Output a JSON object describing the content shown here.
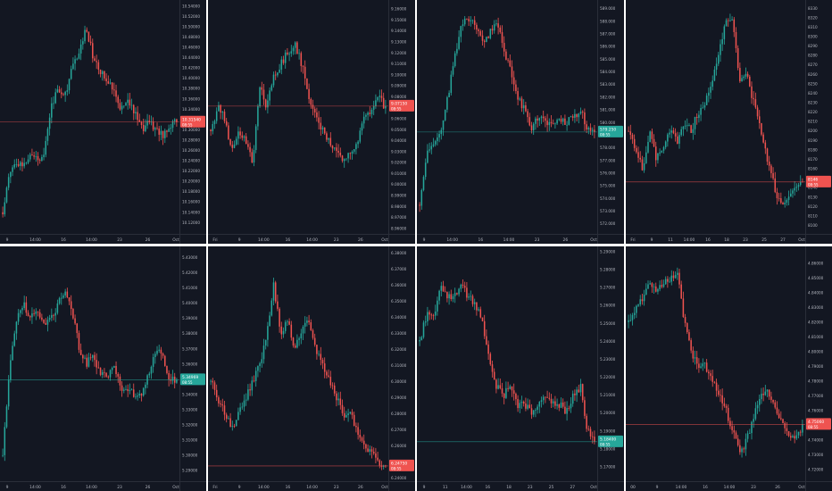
{
  "colors": {
    "background": "#131722",
    "up": "#26a69a",
    "down": "#ef5350",
    "grid_line": "#2a2e39",
    "axis_text": "#b2b5be",
    "divider": "#ffffff"
  },
  "chart_data": [
    {
      "type": "candlestick",
      "ylim": [
        10.098,
        10.545
      ],
      "y_ticks": [
        "10.54000",
        "10.52000",
        "10.50000",
        "10.48000",
        "10.46000",
        "10.44000",
        "10.42000",
        "10.40000",
        "10.38000",
        "10.36000",
        "10.34000",
        "10.32000",
        "10.30000",
        "10.28000",
        "10.26000",
        "10.24000",
        "10.22000",
        "10.20000",
        "10.18000",
        "10.16000",
        "10.14000",
        "10.12000"
      ],
      "y_tick_values": [
        10.54,
        10.52,
        10.5,
        10.48,
        10.46,
        10.44,
        10.42,
        10.4,
        10.38,
        10.36,
        10.34,
        10.32,
        10.3,
        10.28,
        10.26,
        10.24,
        10.22,
        10.2,
        10.18,
        10.16,
        10.14,
        10.12
      ],
      "x_ticks": [
        "9",
        "14:00",
        "16",
        "14:00",
        "23",
        "26",
        "Oct"
      ],
      "last_price": {
        "label": "10.31540",
        "sub": "08:55",
        "value": 10.315,
        "direction": "down"
      },
      "anchors": [
        10.14,
        10.22,
        10.24,
        10.23,
        10.26,
        10.24,
        10.26,
        10.35,
        10.38,
        10.37,
        10.42,
        10.45,
        10.5,
        10.44,
        10.41,
        10.4,
        10.38,
        10.34,
        10.36,
        10.33,
        10.3,
        10.32,
        10.3,
        10.29,
        10.31,
        10.32
      ]
    },
    {
      "type": "candlestick",
      "ylim": [
        8.955,
        9.165
      ],
      "y_ticks": [
        "9.16000",
        "9.15000",
        "9.14000",
        "9.13000",
        "9.12000",
        "9.11000",
        "9.10000",
        "9.09000",
        "9.08000",
        "9.07000",
        "9.06000",
        "9.05000",
        "9.04000",
        "9.03000",
        "9.02000",
        "9.01000",
        "9.00000",
        "8.99000",
        "8.98000",
        "8.97000",
        "8.96000"
      ],
      "y_tick_values": [
        9.16,
        9.15,
        9.14,
        9.13,
        9.12,
        9.11,
        9.1,
        9.09,
        9.08,
        9.07,
        9.06,
        9.05,
        9.04,
        9.03,
        9.02,
        9.01,
        9.0,
        8.99,
        8.98,
        8.97,
        8.96
      ],
      "x_ticks": [
        "Fri",
        "9",
        "14:00",
        "16",
        "14:00",
        "23",
        "26",
        "Oct"
      ],
      "last_price": {
        "label": "9.07150",
        "sub": "08:55",
        "value": 9.0715,
        "direction": "down"
      },
      "anchors": [
        9.05,
        9.07,
        9.06,
        9.03,
        9.05,
        9.04,
        9.02,
        9.09,
        9.07,
        9.1,
        9.11,
        9.12,
        9.13,
        9.11,
        9.08,
        9.06,
        9.05,
        9.04,
        9.03,
        9.02,
        9.03,
        9.04,
        9.06,
        9.07,
        9.08,
        9.07
      ]
    },
    {
      "type": "candlestick",
      "ylim": [
        571.2,
        589.4
      ],
      "y_ticks": [
        "589.000",
        "588.000",
        "587.000",
        "586.000",
        "585.000",
        "584.000",
        "583.000",
        "582.000",
        "581.000",
        "580.000",
        "579.000",
        "578.000",
        "577.000",
        "576.000",
        "575.000",
        "574.000",
        "573.000",
        "572.000"
      ],
      "y_tick_values": [
        589,
        588,
        587,
        586,
        585,
        584,
        583,
        582,
        581,
        580,
        579,
        578,
        577,
        576,
        575,
        574,
        573,
        572
      ],
      "x_ticks": [
        "9",
        "14:00",
        "16",
        "14:00",
        "23",
        "26",
        "Oct"
      ],
      "last_price": {
        "label": "579.250",
        "sub": "08:55",
        "value": 579.25,
        "direction": "up"
      },
      "anchors": [
        573.5,
        577.5,
        578.5,
        579,
        582,
        585,
        588,
        588.2,
        587.5,
        586.5,
        587,
        588,
        586,
        584,
        582,
        581,
        579.5,
        580.5,
        580,
        579.8,
        580.2,
        580,
        580.5,
        581,
        579.5,
        579.5
      ]
    },
    {
      "type": "candlestick",
      "ylim": [
        8091,
        8335
      ],
      "y_ticks": [
        "8330",
        "8320",
        "8310",
        "8300",
        "8290",
        "8280",
        "8270",
        "8260",
        "8250",
        "8240",
        "8230",
        "8220",
        "8210",
        "8200",
        "8190",
        "8180",
        "8170",
        "8160",
        "8150",
        "8140",
        "8130",
        "8120",
        "8110",
        "8100"
      ],
      "y_tick_values": [
        8330,
        8320,
        8310,
        8300,
        8290,
        8280,
        8270,
        8260,
        8250,
        8240,
        8230,
        8220,
        8210,
        8200,
        8190,
        8180,
        8170,
        8160,
        8150,
        8140,
        8130,
        8120,
        8110,
        8100
      ],
      "x_ticks": [
        "Fri",
        "9",
        "11",
        "14:00",
        "16",
        "18",
        "23",
        "25",
        "27",
        "Oct"
      ],
      "last_price": {
        "label": "8146",
        "sub": "08:55",
        "value": 8146,
        "direction": "down"
      },
      "anchors": [
        8200,
        8180,
        8160,
        8200,
        8170,
        8180,
        8200,
        8190,
        8210,
        8200,
        8220,
        8230,
        8250,
        8280,
        8320,
        8315,
        8250,
        8260,
        8230,
        8200,
        8170,
        8140,
        8120,
        8130,
        8140,
        8146
      ]
    },
    {
      "type": "candlestick",
      "ylim": [
        5.283,
        5.435
      ],
      "y_ticks": [
        "5.43000",
        "5.42000",
        "5.41000",
        "5.40000",
        "5.39000",
        "5.38000",
        "5.37000",
        "5.36000",
        "5.35000",
        "5.34000",
        "5.33000",
        "5.32000",
        "5.31000",
        "5.30000",
        "5.29000"
      ],
      "y_tick_values": [
        5.43,
        5.42,
        5.41,
        5.4,
        5.39,
        5.38,
        5.37,
        5.36,
        5.35,
        5.34,
        5.33,
        5.32,
        5.31,
        5.3,
        5.29
      ],
      "x_ticks": [
        "9",
        "14:00",
        "16",
        "14:00",
        "23",
        "26",
        "Oct"
      ],
      "last_price": {
        "label": "5.34969",
        "sub": "08:55",
        "value": 5.3497,
        "direction": "up"
      },
      "anchors": [
        5.3,
        5.36,
        5.39,
        5.4,
        5.39,
        5.395,
        5.385,
        5.39,
        5.4,
        5.41,
        5.395,
        5.37,
        5.36,
        5.365,
        5.355,
        5.35,
        5.36,
        5.345,
        5.345,
        5.34,
        5.34,
        5.355,
        5.37,
        5.365,
        5.35,
        5.35
      ]
    },
    {
      "type": "candlestick",
      "ylim": [
        6.238,
        6.382
      ],
      "y_ticks": [
        "6.38000",
        "6.37000",
        "6.36000",
        "6.35000",
        "6.34000",
        "6.33000",
        "6.32000",
        "6.31000",
        "6.30000",
        "6.29000",
        "6.28000",
        "6.27000",
        "6.26000",
        "6.25000",
        "6.24000"
      ],
      "y_tick_values": [
        6.38,
        6.37,
        6.36,
        6.35,
        6.34,
        6.33,
        6.32,
        6.31,
        6.3,
        6.29,
        6.28,
        6.27,
        6.26,
        6.25,
        6.24
      ],
      "x_ticks": [
        "Fri",
        "9",
        "14:00",
        "16",
        "14:00",
        "23",
        "26",
        "Oct"
      ],
      "last_price": {
        "label": "6.24750",
        "sub": "08:55",
        "value": 6.2475,
        "direction": "down"
      },
      "anchors": [
        6.3,
        6.29,
        6.28,
        6.27,
        6.28,
        6.29,
        6.3,
        6.31,
        6.33,
        6.36,
        6.33,
        6.34,
        6.32,
        6.33,
        6.34,
        6.32,
        6.31,
        6.3,
        6.29,
        6.28,
        6.28,
        6.27,
        6.26,
        6.255,
        6.25,
        6.2475
      ]
    },
    {
      "type": "candlestick",
      "ylim": [
        5.162,
        5.291
      ],
      "y_ticks": [
        "5.29000",
        "5.28000",
        "5.27000",
        "5.26000",
        "5.25000",
        "5.24000",
        "5.23000",
        "5.22000",
        "5.21000",
        "5.20000",
        "5.19000",
        "5.18000",
        "5.17000"
      ],
      "y_tick_values": [
        5.29,
        5.28,
        5.27,
        5.26,
        5.25,
        5.24,
        5.23,
        5.22,
        5.21,
        5.2,
        5.19,
        5.18,
        5.17
      ],
      "x_ticks": [
        "9",
        "11",
        "14:00",
        "16",
        "18",
        "23",
        "25",
        "27",
        "Oct"
      ],
      "last_price": {
        "label": "5.18400",
        "sub": "08:55",
        "value": 5.184,
        "direction": "up"
      },
      "anchors": [
        5.24,
        5.255,
        5.255,
        5.27,
        5.265,
        5.265,
        5.27,
        5.265,
        5.26,
        5.25,
        5.23,
        5.215,
        5.21,
        5.215,
        5.205,
        5.205,
        5.2,
        5.205,
        5.21,
        5.205,
        5.205,
        5.2,
        5.21,
        5.215,
        5.19,
        5.184
      ]
    },
    {
      "type": "candlestick",
      "ylim": [
        4.712,
        4.869
      ],
      "y_ticks": [
        "4.86000",
        "4.85000",
        "4.84000",
        "4.83000",
        "4.82000",
        "4.81000",
        "4.80000",
        "4.79000",
        "4.78000",
        "4.77000",
        "4.76000",
        "4.75000",
        "4.74000",
        "4.73000",
        "4.72000"
      ],
      "y_tick_values": [
        4.86,
        4.85,
        4.84,
        4.83,
        4.82,
        4.81,
        4.8,
        4.79,
        4.78,
        4.77,
        4.76,
        4.75,
        4.74,
        4.73,
        4.72
      ],
      "x_ticks": [
        "00",
        "9",
        "14:00",
        "16",
        "14:00",
        "23",
        "26",
        "Oct"
      ],
      "last_price": {
        "label": "4.75060",
        "sub": "08:55",
        "value": 4.7506,
        "direction": "down"
      },
      "anchors": [
        4.82,
        4.83,
        4.835,
        4.845,
        4.84,
        4.845,
        4.85,
        4.855,
        4.82,
        4.8,
        4.79,
        4.79,
        4.78,
        4.77,
        4.76,
        4.745,
        4.73,
        4.74,
        4.755,
        4.77,
        4.775,
        4.76,
        4.755,
        4.745,
        4.74,
        4.75
      ]
    }
  ]
}
